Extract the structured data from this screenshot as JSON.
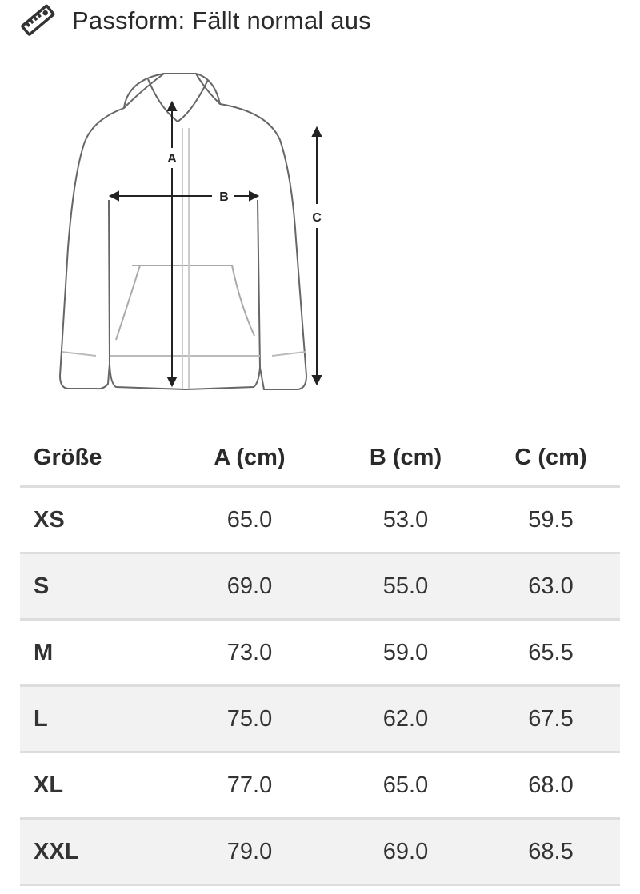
{
  "fit": {
    "icon": "ruler-icon",
    "label": "Passform: Fällt normal aus"
  },
  "diagram": {
    "labels": {
      "a": "A",
      "b": "B",
      "c": "C"
    }
  },
  "table": {
    "headers": [
      "Größe",
      "A (cm)",
      "B (cm)",
      "C (cm)"
    ],
    "rows": [
      [
        "XS",
        "65.0",
        "53.0",
        "59.5"
      ],
      [
        "S",
        "69.0",
        "55.0",
        "63.0"
      ],
      [
        "M",
        "73.0",
        "59.0",
        "65.5"
      ],
      [
        "L",
        "75.0",
        "62.0",
        "67.5"
      ],
      [
        "XL",
        "77.0",
        "65.0",
        "68.0"
      ],
      [
        "XXL",
        "79.0",
        "69.0",
        "68.5"
      ]
    ]
  }
}
